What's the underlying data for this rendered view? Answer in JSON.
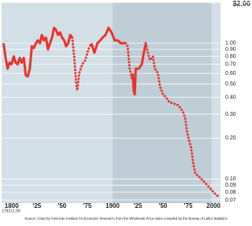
{
  "chart_data": {
    "type": "line",
    "title": "$2.00",
    "note": "1792=1.00",
    "source": "Source: Chart by American Institute for Economic Research, from the Wholesale Price Index compiled by the Bureau of Labor Statistics",
    "log_y": true,
    "grid": true,
    "shade": [
      1900,
      1998
    ],
    "xlim": [
      1790,
      2007
    ],
    "ylim": [
      0.07,
      2.0
    ],
    "xticks": [
      {
        "value": 1800,
        "label": "1800"
      },
      {
        "value": 1825,
        "label": "'25"
      },
      {
        "value": 1850,
        "label": "'50"
      },
      {
        "value": 1875,
        "label": "'75"
      },
      {
        "value": 1900,
        "label": "1900"
      },
      {
        "value": 1925,
        "label": "'25"
      },
      {
        "value": 1950,
        "label": "'50"
      },
      {
        "value": 1975,
        "label": "'75"
      },
      {
        "value": 2000,
        "label": "2000"
      }
    ],
    "yticks": [
      {
        "value": 1,
        "label": "1.00"
      },
      {
        "value": 0.9,
        "label": "0.90"
      },
      {
        "value": 0.8,
        "label": "0.80"
      },
      {
        "value": 0.7,
        "label": "0.70"
      },
      {
        "value": 0.6,
        "label": "0.60"
      },
      {
        "value": 0.5,
        "label": "0.50"
      },
      {
        "value": 0.4,
        "label": "0.40"
      },
      {
        "value": 0.3,
        "label": "0.30"
      },
      {
        "value": 0.2,
        "label": "0.20"
      },
      {
        "value": 0.1,
        "label": "0.10"
      },
      {
        "value": 0.09,
        "label": "0.09"
      },
      {
        "value": 0.08,
        "label": "0.08"
      },
      {
        "value": 0.07,
        "label": "0.07"
      }
    ],
    "series": [
      {
        "color": "#e8332e",
        "dashed": false,
        "x": [
          1792,
          1794,
          1796,
          1798,
          1800,
          1802,
          1804,
          1806,
          1808,
          1810,
          1812,
          1814,
          1816,
          1818,
          1820,
          1822,
          1824,
          1826,
          1828,
          1830,
          1832,
          1834,
          1836,
          1838,
          1840,
          1842,
          1844,
          1846,
          1848,
          1850,
          1852,
          1854,
          1856,
          1858,
          1860,
          null,
          1879,
          1882,
          1885,
          1888,
          1890,
          1893,
          1896,
          1899,
          1902,
          1905,
          1908,
          1911,
          1913,
          null,
          1920,
          1921,
          1922,
          1923,
          1926,
          1929,
          1931,
          1933
        ],
        "values": [
          1.0,
          0.78,
          0.65,
          0.72,
          0.7,
          0.8,
          0.72,
          0.7,
          0.78,
          0.72,
          0.78,
          0.58,
          0.57,
          0.65,
          0.95,
          0.92,
          1.0,
          1.05,
          1.0,
          1.15,
          1.05,
          1.1,
          0.9,
          1.0,
          1.1,
          1.3,
          1.25,
          1.15,
          1.2,
          1.1,
          1.05,
          0.95,
          1.0,
          1.15,
          1.1,
          null,
          1.0,
          0.85,
          1.0,
          1.05,
          1.1,
          1.15,
          1.3,
          1.2,
          1.05,
          1.05,
          1.0,
          1.0,
          1.0,
          null,
          0.6,
          0.45,
          0.42,
          0.65,
          0.65,
          0.7,
          0.85,
          1.0
        ]
      },
      {
        "color": "#e8332e",
        "dashed": true,
        "x": [
          1860,
          1862,
          1864,
          1865,
          1867,
          1870,
          1873,
          1876,
          1879,
          null,
          1913,
          1915,
          1917,
          1919,
          1920,
          null,
          1933,
          1935,
          1937,
          1940,
          1942,
          1945,
          1947,
          1950,
          1953,
          1956,
          1960,
          1965,
          1968,
          1970,
          1972,
          1974,
          1976,
          1978,
          1980,
          1982,
          1985,
          1988,
          1991,
          1994,
          1997,
          2000,
          2004
        ],
        "values": [
          1.1,
          0.8,
          0.5,
          0.45,
          0.6,
          0.7,
          0.75,
          0.9,
          1.0,
          null,
          1.0,
          0.95,
          0.65,
          0.55,
          0.6,
          null,
          1.0,
          0.85,
          0.75,
          0.8,
          0.65,
          0.6,
          0.48,
          0.42,
          0.4,
          0.37,
          0.36,
          0.35,
          0.33,
          0.31,
          0.28,
          0.22,
          0.19,
          0.17,
          0.13,
          0.11,
          0.105,
          0.1,
          0.095,
          0.09,
          0.085,
          0.08,
          0.075
        ]
      }
    ]
  }
}
